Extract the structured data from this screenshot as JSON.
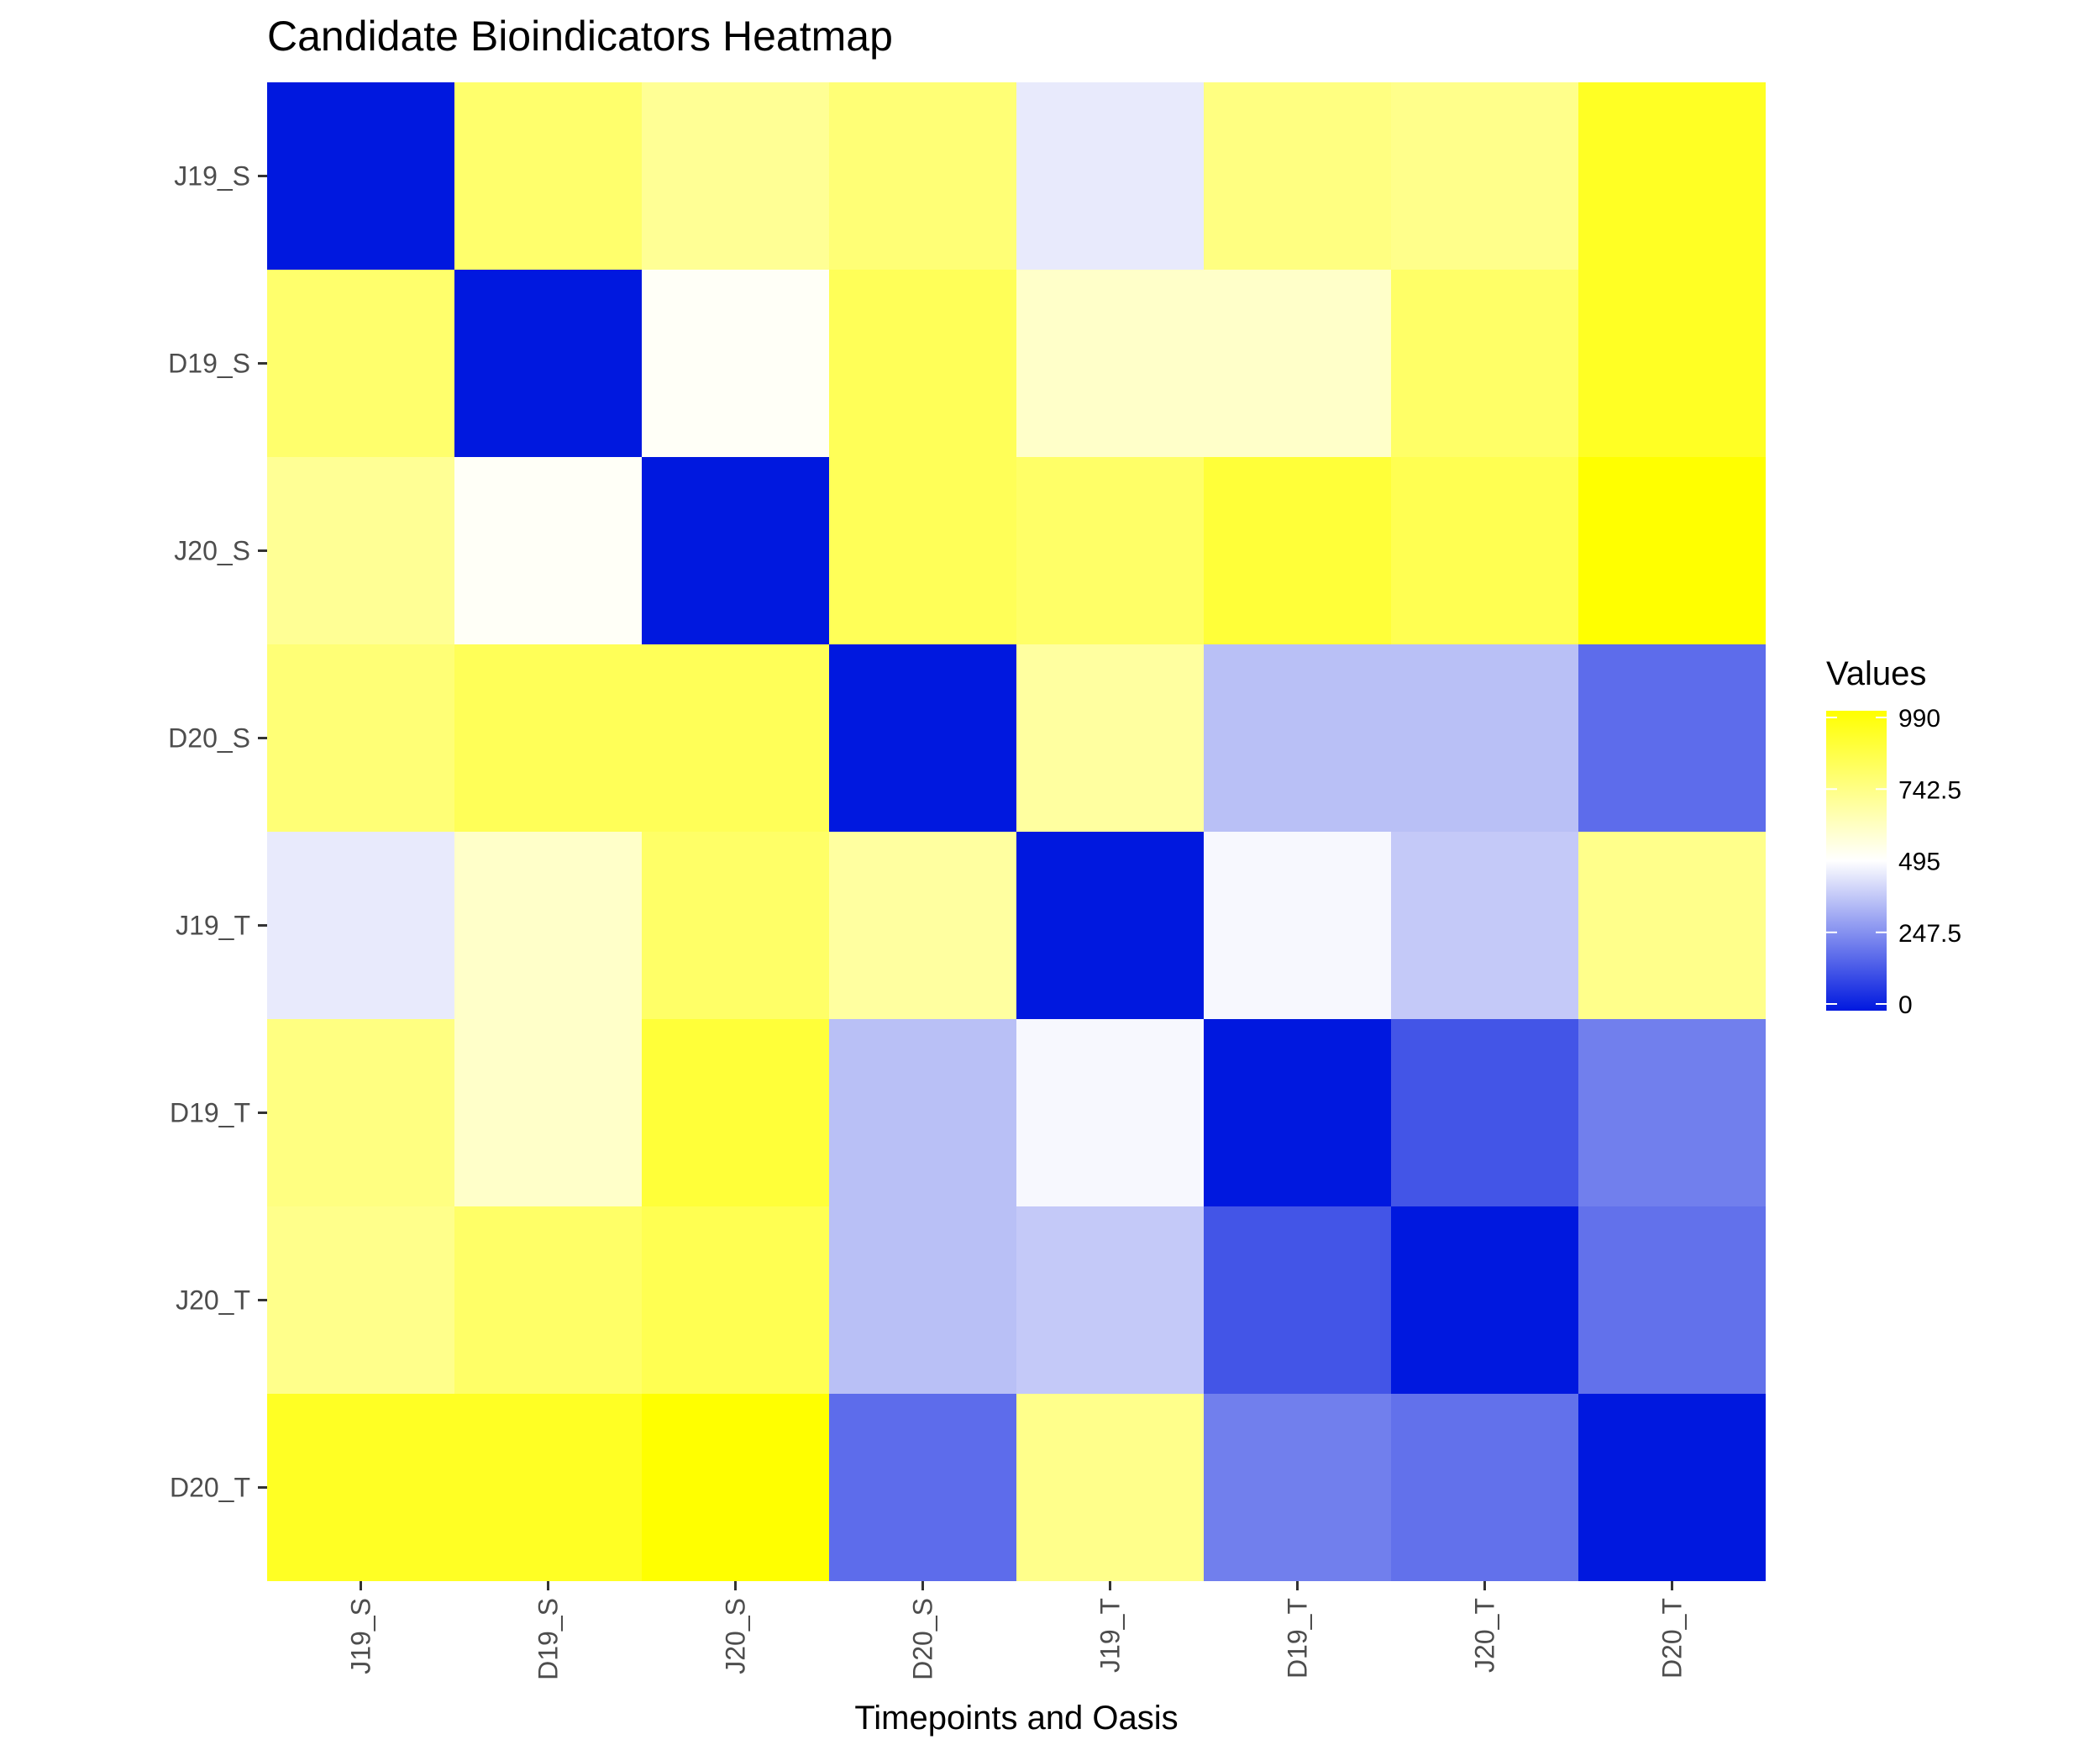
{
  "chart_data": {
    "type": "heatmap",
    "title": "Candidate Bioindicators Heatmap",
    "xlabel": "Timepoints and Oasis",
    "ylabel": "",
    "x_categories": [
      "J19_S",
      "D19_S",
      "J20_S",
      "D20_S",
      "J19_T",
      "D19_T",
      "J20_T",
      "D20_T"
    ],
    "y_categories": [
      "J19_S",
      "D19_S",
      "J20_S",
      "D20_S",
      "J19_T",
      "D19_T",
      "J20_T",
      "D20_T"
    ],
    "values": [
      [
        0,
        780,
        700,
        760,
        450,
        740,
        720,
        920
      ],
      [
        780,
        0,
        510,
        820,
        600,
        600,
        790,
        920
      ],
      [
        700,
        510,
        0,
        820,
        790,
        880,
        830,
        990
      ],
      [
        760,
        820,
        820,
        0,
        680,
        360,
        360,
        180
      ],
      [
        450,
        600,
        790,
        680,
        0,
        480,
        380,
        720
      ],
      [
        740,
        600,
        880,
        360,
        480,
        0,
        130,
        220
      ],
      [
        720,
        790,
        830,
        360,
        380,
        130,
        0,
        190
      ],
      [
        920,
        920,
        990,
        180,
        720,
        220,
        190,
        0
      ]
    ],
    "color_scale": {
      "low": "#0018df",
      "mid": "#ffffff",
      "high": "#ffff00",
      "min": 0,
      "midpoint": 495,
      "max": 990
    },
    "legend": {
      "title": "Values",
      "position": "right",
      "ticks": [
        "990",
        "742.5",
        "495",
        "247.5",
        "0"
      ]
    },
    "grid": false
  }
}
